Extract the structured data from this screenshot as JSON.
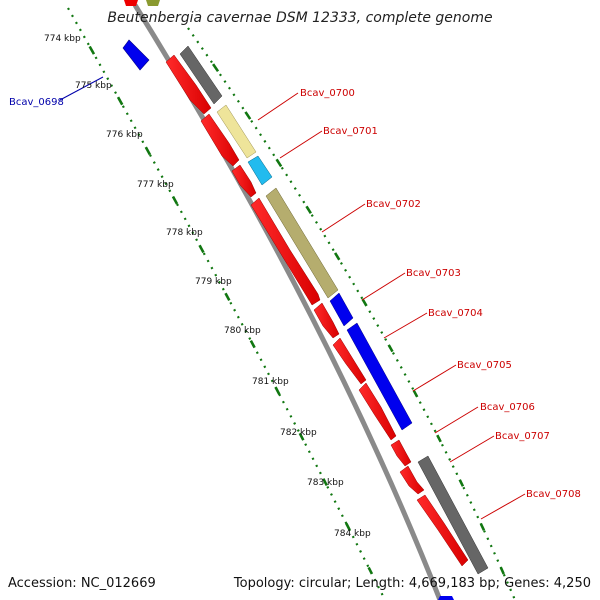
{
  "map": {
    "title": "Beutenbergia cavernae DSM 12333, complete genome",
    "accession": "Accession: NC_012669",
    "summary": "Topology: circular; Length: 4,669,183 bp; Genes: 4,250"
  },
  "ruler": {
    "labels": [
      "774 kbp",
      "775 kbp",
      "776 kbp",
      "777 kbp",
      "778 kbp",
      "779 kbp",
      "780 kbp",
      "781 kbp",
      "782 kbp",
      "783 kbp",
      "784 kbp"
    ]
  },
  "genes": {
    "reverse_strand": [
      "Bcav_0698"
    ],
    "forward_strand": [
      "Bcav_0700",
      "Bcav_0701",
      "Bcav_0702",
      "Bcav_0703",
      "Bcav_0704",
      "Bcav_0705",
      "Bcav_0706",
      "Bcav_0707",
      "Bcav_0708"
    ]
  },
  "colors": {
    "forward_label": "#cc0000",
    "reverse_label": "#0000aa",
    "cds_red": "#ee0000",
    "gene_grey": "#666666",
    "gene_yellow": "#eee49a",
    "gene_cyan": "#22bbee",
    "gene_olive": "#b5ad6e",
    "gene_blue": "#0000ee",
    "ruler_green": "#117711",
    "backbone": "#888888"
  }
}
